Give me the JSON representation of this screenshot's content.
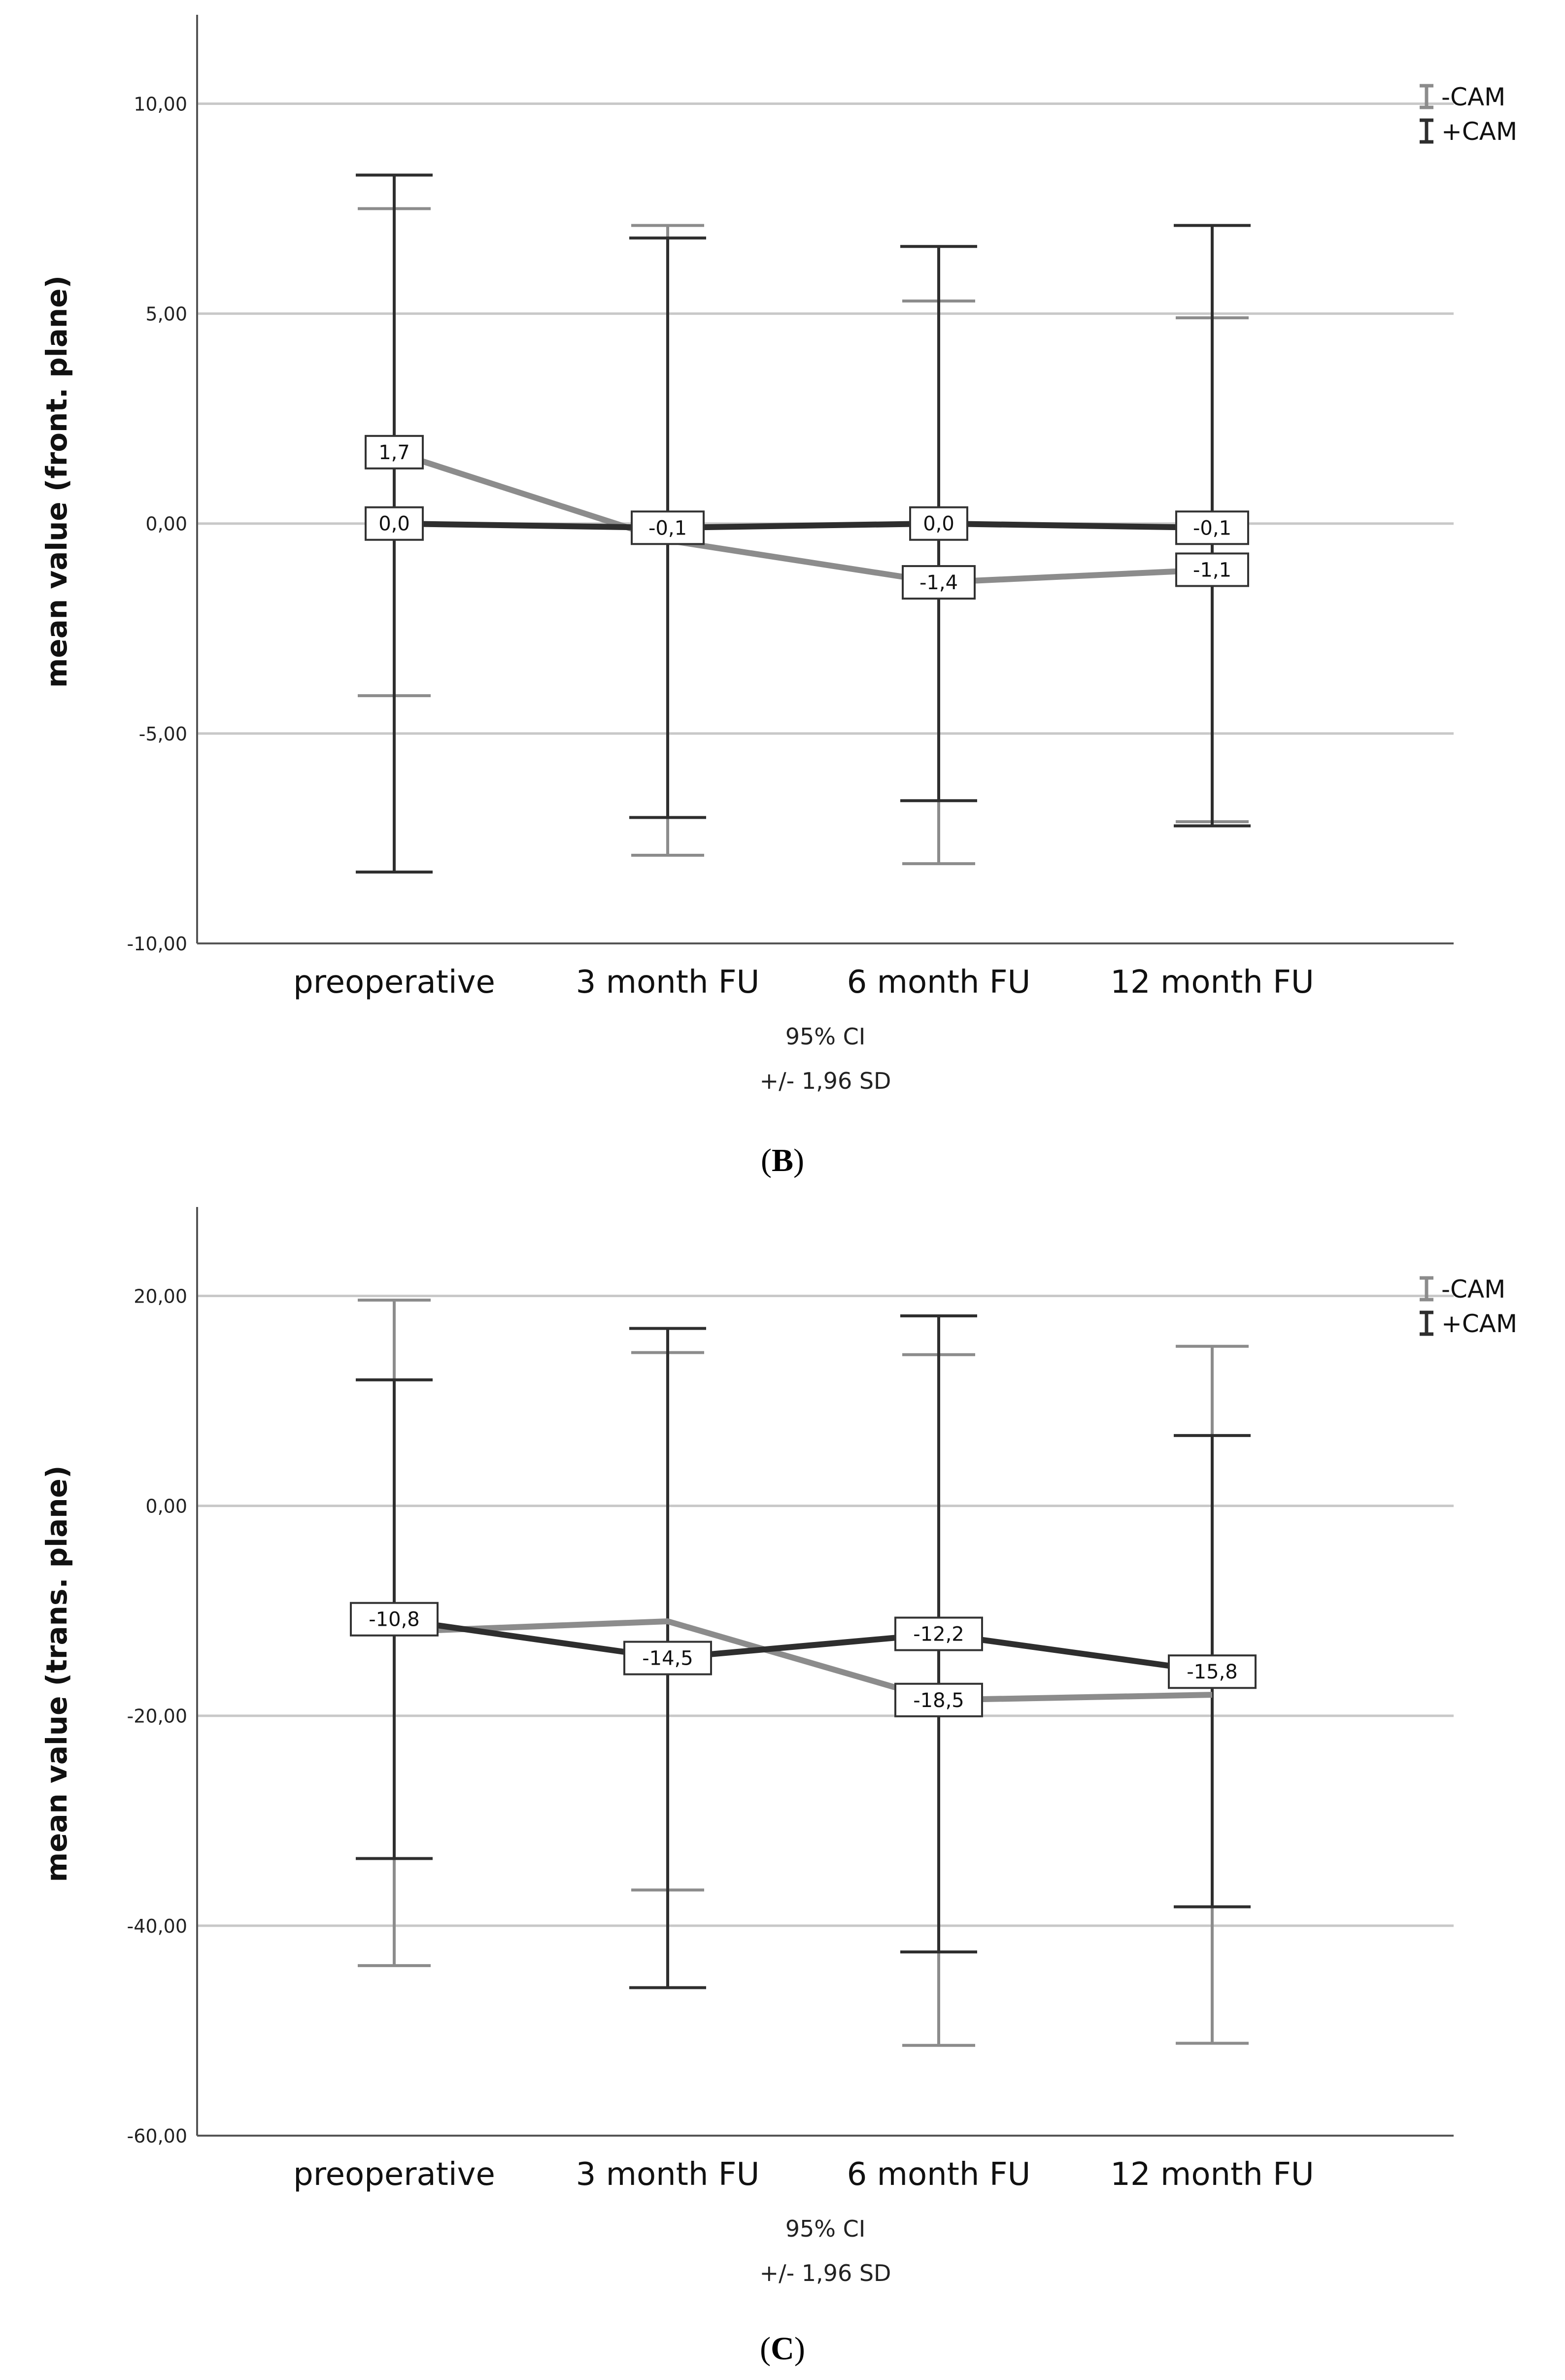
{
  "chart_data": [
    {
      "type": "line",
      "panel_label": "B",
      "ylabel": "mean value (front. plane)",
      "xlabel_lines": [
        "95% CI",
        "+/- 1,96 SD"
      ],
      "categories": [
        "preoperative",
        "3 month FU",
        "6 month FU",
        "12 month FU"
      ],
      "ylim": [
        -10,
        12
      ],
      "yticks": [
        -10,
        -5,
        0,
        5,
        10
      ],
      "ytick_labels": [
        "-10,00",
        "-5,00",
        "0,00",
        "5,00",
        "10,00"
      ],
      "grid": true,
      "legend": "top-right",
      "series": [
        {
          "name": "-CAM",
          "color": "#8c8c8c",
          "values": [
            1.7,
            -0.4,
            -1.4,
            -1.1
          ],
          "ci_upper": [
            7.5,
            7.1,
            5.3,
            4.9
          ],
          "ci_lower": [
            -4.1,
            -7.9,
            -8.1,
            -7.1
          ],
          "data_labels": [
            "1,7",
            null,
            "-1,4",
            "-1,1"
          ]
        },
        {
          "name": "+CAM",
          "color": "#2e2e2e",
          "values": [
            0.0,
            -0.1,
            0.0,
            -0.1
          ],
          "ci_upper": [
            8.3,
            6.8,
            6.6,
            7.1
          ],
          "ci_lower": [
            -8.3,
            -7.0,
            -6.6,
            -7.2
          ],
          "data_labels": [
            "0,0",
            "-0,1",
            "0,0",
            "-0,1"
          ]
        }
      ]
    },
    {
      "type": "line",
      "panel_label": "C",
      "ylabel": "mean value (trans. plane)",
      "xlabel_lines": [
        "95% CI",
        "+/- 1,96 SD"
      ],
      "categories": [
        "preoperative",
        "3 month FU",
        "6 month FU",
        "12 month FU"
      ],
      "ylim": [
        -60,
        28
      ],
      "yticks": [
        -60,
        -40,
        -20,
        0,
        20
      ],
      "ytick_labels": [
        "-60,00",
        "-40,00",
        "-20,00",
        "0,00",
        "20,00"
      ],
      "grid": true,
      "legend": "top-right",
      "series": [
        {
          "name": "-CAM",
          "color": "#8c8c8c",
          "values": [
            -12.0,
            -11.0,
            -18.5,
            -18.0
          ],
          "ci_upper": [
            19.6,
            14.6,
            14.4,
            15.2
          ],
          "ci_lower": [
            -43.8,
            -36.6,
            -51.4,
            -51.2
          ],
          "data_labels": [
            null,
            null,
            "-18,5",
            null
          ]
        },
        {
          "name": "+CAM",
          "color": "#2e2e2e",
          "values": [
            -10.8,
            -14.5,
            -12.2,
            -15.8
          ],
          "ci_upper": [
            12.0,
            16.9,
            18.1,
            6.7
          ],
          "ci_lower": [
            -33.6,
            -45.9,
            -42.5,
            -38.2
          ],
          "data_labels": [
            "-10,8",
            "-14,5",
            "-12,2",
            "-15,8"
          ]
        }
      ]
    }
  ],
  "panels": {
    "b_label": "B",
    "c_label": "C"
  }
}
